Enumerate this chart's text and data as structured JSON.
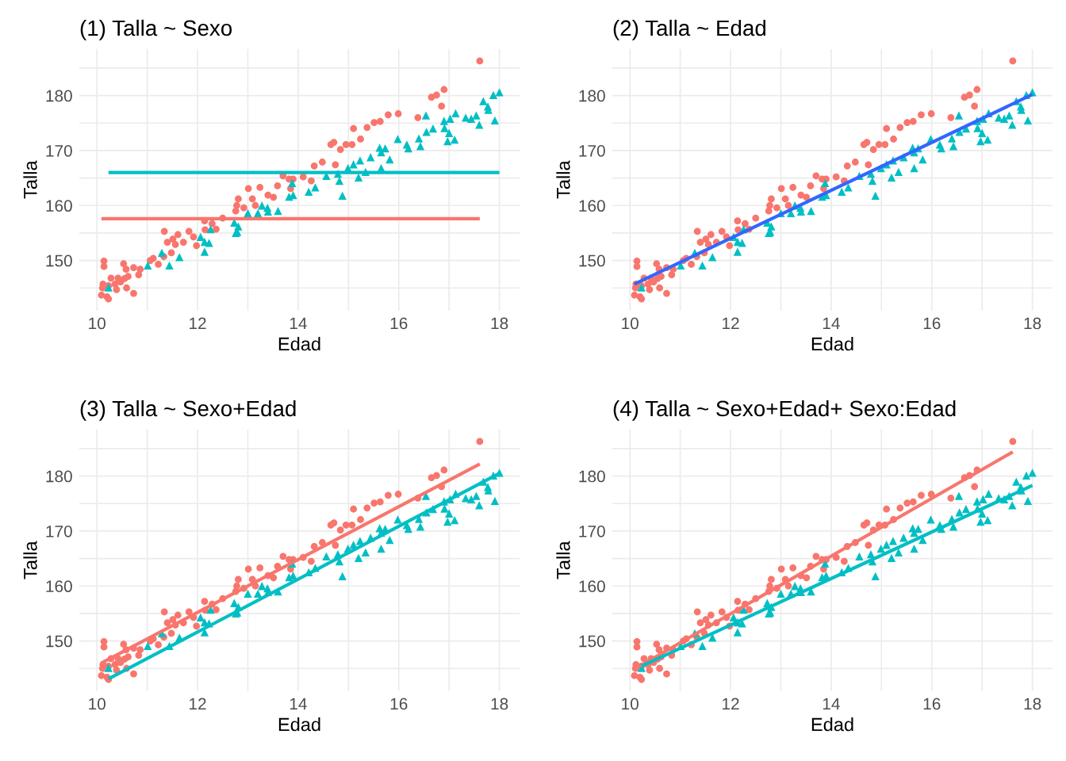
{
  "chart_data": [
    {
      "type": "scatter",
      "title": "(1) Talla ~ Sexo",
      "xlabel": "Edad",
      "ylabel": "Talla",
      "xlim": [
        9.65,
        18.4
      ],
      "ylim": [
        140.9,
        188.5
      ],
      "xticks": [
        10,
        {
          "value": 11,
          "label": null
        },
        12,
        {
          "value": 13,
          "label": null
        },
        14,
        {
          "value": 15,
          "label": null
        },
        16,
        {
          "value": 17,
          "label": null
        },
        18
      ],
      "yticks": [
        {
          "value": 145,
          "label": null
        },
        150,
        {
          "value": 155,
          "label": null
        },
        160,
        {
          "value": 165,
          "label": null
        },
        170,
        {
          "value": 175,
          "label": null
        },
        180,
        {
          "value": 185,
          "label": null
        }
      ],
      "grid": true,
      "series": [
        {
          "type": "scatter",
          "marker": "circle",
          "color": "#f8766d",
          "x": [
            10.14,
            10.14,
            10.53,
            10.58,
            10.73,
            10.86,
            10.83,
            10.28,
            10.42,
            10.55,
            10.62,
            10.12,
            10.11,
            10.23,
            10.36,
            10.39,
            10.47,
            10.59,
            10.73,
            10.09,
            10.2,
            10.23,
            11.06,
            11.12,
            11.22,
            11.33,
            11.48,
            11.34,
            11.4,
            11.51,
            11.61,
            11.56,
            11.72,
            11.83,
            11.92,
            11.98,
            12.14,
            12.15,
            12.29,
            12.37,
            12.5,
            12.76,
            12.81,
            12.78,
            12.92,
            13.01,
            13.09,
            13.15,
            13.24,
            13.4,
            13.51,
            13.59,
            13.7,
            13.82,
            13.85,
            13.9,
            14.1,
            14.26,
            14.32,
            14.48,
            14.74,
            14.65,
            14.71,
            14.84,
            14.95,
            15.07,
            15.1,
            15.24,
            15.37,
            15.51,
            15.63,
            15.79,
            15.99,
            16.38,
            16.65,
            16.75,
            16.9,
            16.85,
            17.61
          ],
          "values": [
            149.9,
            148.9,
            149.4,
            148.4,
            148.7,
            148.4,
            147.4,
            146.8,
            146.8,
            146.7,
            147.1,
            145.7,
            145.0,
            145.4,
            145.7,
            144.7,
            146.1,
            145.0,
            144.0,
            143.7,
            143.4,
            143.0,
            150.0,
            150.4,
            149.3,
            150.7,
            151.4,
            155.3,
            153.3,
            153.9,
            154.7,
            152.9,
            153.3,
            155.3,
            154.3,
            152.7,
            157.2,
            155.6,
            156.7,
            155.7,
            157.7,
            159.0,
            161.2,
            160.0,
            159.6,
            163.1,
            161.2,
            160.0,
            163.3,
            161.9,
            161.5,
            163.6,
            165.4,
            164.8,
            163.1,
            164.8,
            165.2,
            164.5,
            167.2,
            167.9,
            167.4,
            171.1,
            171.5,
            170.2,
            171.1,
            171.1,
            174.0,
            172.1,
            174.2,
            175.1,
            175.3,
            176.5,
            176.7,
            176.0,
            179.7,
            180.1,
            181.1,
            178.1,
            186.3
          ]
        },
        {
          "type": "scatter",
          "marker": "triangle",
          "color": "#00bfc4",
          "x": [
            10.23,
            11.01,
            11.29,
            11.44,
            11.64,
            12.06,
            12.14,
            12.23,
            12.14,
            12.26,
            12.73,
            12.76,
            12.81,
            12.79,
            13.0,
            13.2,
            13.28,
            13.39,
            13.4,
            13.6,
            13.82,
            13.9,
            13.88,
            14.21,
            14.34,
            14.56,
            14.79,
            14.82,
            14.88,
            14.99,
            15.1,
            15.23,
            15.2,
            15.44,
            15.34,
            15.62,
            15.65,
            15.73,
            15.82,
            15.65,
            15.98,
            16.16,
            16.19,
            16.4,
            16.43,
            16.55,
            16.54,
            16.68,
            16.9,
            16.91,
            17.02,
            17.13,
            17.0,
            16.97,
            17.11,
            17.33,
            17.44,
            17.54,
            17.6,
            17.91,
            17.68,
            17.77,
            17.78,
            17.88,
            18.0
          ],
          "values": [
            145.1,
            149.1,
            151.4,
            149.1,
            150.6,
            154.3,
            153.4,
            153.2,
            151.6,
            155.7,
            156.9,
            155.0,
            156.2,
            155.2,
            158.6,
            158.6,
            160.0,
            159.6,
            158.9,
            159.0,
            161.6,
            161.9,
            164.1,
            162.5,
            163.3,
            165.4,
            165.8,
            164.5,
            161.8,
            166.8,
            167.5,
            168.2,
            165.1,
            168.8,
            166.1,
            170.5,
            169.7,
            170.4,
            168.4,
            166.8,
            172.1,
            171.1,
            170.4,
            172.2,
            170.8,
            173.4,
            176.4,
            174.0,
            175.4,
            174.1,
            175.8,
            176.8,
            173.2,
            171.7,
            172.0,
            176.0,
            175.8,
            176.4,
            174.7,
            175.5,
            179.0,
            178.0,
            177.4,
            180.1,
            180.6
          ]
        },
        {
          "type": "line",
          "color": "#f8766d",
          "x": [
            10.09,
            17.61
          ],
          "values": [
            157.6,
            157.6
          ]
        },
        {
          "type": "line",
          "color": "#00bfc4",
          "x": [
            10.23,
            18.0
          ],
          "values": [
            166.0,
            166.0
          ]
        }
      ]
    },
    {
      "type": "scatter",
      "title": "(2) Talla ~ Edad",
      "xlabel": "Edad",
      "ylabel": "Talla",
      "xlim": [
        9.65,
        18.4
      ],
      "ylim": [
        140.9,
        188.5
      ],
      "xticks": [
        10,
        {
          "value": 11,
          "label": null
        },
        12,
        {
          "value": 13,
          "label": null
        },
        14,
        {
          "value": 15,
          "label": null
        },
        16,
        {
          "value": 17,
          "label": null
        },
        18
      ],
      "yticks": [
        {
          "value": 145,
          "label": null
        },
        150,
        {
          "value": 155,
          "label": null
        },
        160,
        {
          "value": 165,
          "label": null
        },
        170,
        {
          "value": 175,
          "label": null
        },
        180,
        {
          "value": 185,
          "label": null
        }
      ],
      "grid": true,
      "series": [
        {
          "type": "scatter",
          "marker": "circle",
          "color": "#f8766d",
          "x": [
            10.14,
            10.14,
            10.53,
            10.58,
            10.73,
            10.86,
            10.83,
            10.28,
            10.42,
            10.55,
            10.62,
            10.12,
            10.11,
            10.23,
            10.36,
            10.39,
            10.47,
            10.59,
            10.73,
            10.09,
            10.2,
            10.23,
            11.06,
            11.12,
            11.22,
            11.33,
            11.48,
            11.34,
            11.4,
            11.51,
            11.61,
            11.56,
            11.72,
            11.83,
            11.92,
            11.98,
            12.14,
            12.15,
            12.29,
            12.37,
            12.5,
            12.76,
            12.81,
            12.78,
            12.92,
            13.01,
            13.09,
            13.15,
            13.24,
            13.4,
            13.51,
            13.59,
            13.7,
            13.82,
            13.85,
            13.9,
            14.1,
            14.26,
            14.32,
            14.48,
            14.74,
            14.65,
            14.71,
            14.84,
            14.95,
            15.07,
            15.1,
            15.24,
            15.37,
            15.51,
            15.63,
            15.79,
            15.99,
            16.38,
            16.65,
            16.75,
            16.9,
            16.85,
            17.61
          ],
          "values": [
            149.9,
            148.9,
            149.4,
            148.4,
            148.7,
            148.4,
            147.4,
            146.8,
            146.8,
            146.7,
            147.1,
            145.7,
            145.0,
            145.4,
            145.7,
            144.7,
            146.1,
            145.0,
            144.0,
            143.7,
            143.4,
            143.0,
            150.0,
            150.4,
            149.3,
            150.7,
            151.4,
            155.3,
            153.3,
            153.9,
            154.7,
            152.9,
            153.3,
            155.3,
            154.3,
            152.7,
            157.2,
            155.6,
            156.7,
            155.7,
            157.7,
            159.0,
            161.2,
            160.0,
            159.6,
            163.1,
            161.2,
            160.0,
            163.3,
            161.9,
            161.5,
            163.6,
            165.4,
            164.8,
            163.1,
            164.8,
            165.2,
            164.5,
            167.2,
            167.9,
            167.4,
            171.1,
            171.5,
            170.2,
            171.1,
            171.1,
            174.0,
            172.1,
            174.2,
            175.1,
            175.3,
            176.5,
            176.7,
            176.0,
            179.7,
            180.1,
            181.1,
            178.1,
            186.3
          ]
        },
        {
          "type": "scatter",
          "marker": "triangle",
          "color": "#00bfc4",
          "x": [
            10.23,
            11.01,
            11.29,
            11.44,
            11.64,
            12.06,
            12.14,
            12.23,
            12.14,
            12.26,
            12.73,
            12.76,
            12.81,
            12.79,
            13.0,
            13.2,
            13.28,
            13.39,
            13.4,
            13.6,
            13.82,
            13.9,
            13.88,
            14.21,
            14.34,
            14.56,
            14.79,
            14.82,
            14.88,
            14.99,
            15.1,
            15.23,
            15.2,
            15.44,
            15.34,
            15.62,
            15.65,
            15.73,
            15.82,
            15.65,
            15.98,
            16.16,
            16.19,
            16.4,
            16.43,
            16.55,
            16.54,
            16.68,
            16.9,
            16.91,
            17.02,
            17.13,
            17.0,
            16.97,
            17.11,
            17.33,
            17.44,
            17.54,
            17.6,
            17.91,
            17.68,
            17.77,
            17.78,
            17.88,
            18.0
          ],
          "values": [
            145.1,
            149.1,
            151.4,
            149.1,
            150.6,
            154.3,
            153.4,
            153.2,
            151.6,
            155.7,
            156.9,
            155.0,
            156.2,
            155.2,
            158.6,
            158.6,
            160.0,
            159.6,
            158.9,
            159.0,
            161.6,
            161.9,
            164.1,
            162.5,
            163.3,
            165.4,
            165.8,
            164.5,
            161.8,
            166.8,
            167.5,
            168.2,
            165.1,
            168.8,
            166.1,
            170.5,
            169.7,
            170.4,
            168.4,
            166.8,
            172.1,
            171.1,
            170.4,
            172.2,
            170.8,
            173.4,
            176.4,
            174.0,
            175.4,
            174.1,
            175.8,
            176.8,
            173.2,
            171.7,
            172.0,
            176.0,
            175.8,
            176.4,
            174.7,
            175.5,
            179.0,
            178.0,
            177.4,
            180.1,
            180.6
          ]
        },
        {
          "type": "line",
          "color": "#3366ff",
          "x": [
            10.09,
            18.0
          ],
          "values": [
            145.7,
            180.2
          ]
        }
      ]
    },
    {
      "type": "scatter",
      "title": "(3) Talla ~ Sexo+Edad",
      "xlabel": "Edad",
      "ylabel": "Talla",
      "xlim": [
        9.65,
        18.4
      ],
      "ylim": [
        140.9,
        188.5
      ],
      "xticks": [
        10,
        {
          "value": 11,
          "label": null
        },
        12,
        {
          "value": 13,
          "label": null
        },
        14,
        {
          "value": 15,
          "label": null
        },
        16,
        {
          "value": 17,
          "label": null
        },
        18
      ],
      "yticks": [
        {
          "value": 145,
          "label": null
        },
        150,
        {
          "value": 155,
          "label": null
        },
        160,
        {
          "value": 165,
          "label": null
        },
        170,
        {
          "value": 175,
          "label": null
        },
        180,
        {
          "value": 185,
          "label": null
        }
      ],
      "grid": true,
      "series": [
        {
          "type": "scatter",
          "marker": "circle",
          "color": "#f8766d",
          "x": [
            10.14,
            10.14,
            10.53,
            10.58,
            10.73,
            10.86,
            10.83,
            10.28,
            10.42,
            10.55,
            10.62,
            10.12,
            10.11,
            10.23,
            10.36,
            10.39,
            10.47,
            10.59,
            10.73,
            10.09,
            10.2,
            10.23,
            11.06,
            11.12,
            11.22,
            11.33,
            11.48,
            11.34,
            11.4,
            11.51,
            11.61,
            11.56,
            11.72,
            11.83,
            11.92,
            11.98,
            12.14,
            12.15,
            12.29,
            12.37,
            12.5,
            12.76,
            12.81,
            12.78,
            12.92,
            13.01,
            13.09,
            13.15,
            13.24,
            13.4,
            13.51,
            13.59,
            13.7,
            13.82,
            13.85,
            13.9,
            14.1,
            14.26,
            14.32,
            14.48,
            14.74,
            14.65,
            14.71,
            14.84,
            14.95,
            15.07,
            15.1,
            15.24,
            15.37,
            15.51,
            15.63,
            15.79,
            15.99,
            16.38,
            16.65,
            16.75,
            16.9,
            16.85,
            17.61
          ],
          "values": [
            149.9,
            148.9,
            149.4,
            148.4,
            148.7,
            148.4,
            147.4,
            146.8,
            146.8,
            146.7,
            147.1,
            145.7,
            145.0,
            145.4,
            145.7,
            144.7,
            146.1,
            145.0,
            144.0,
            143.7,
            143.4,
            143.0,
            150.0,
            150.4,
            149.3,
            150.7,
            151.4,
            155.3,
            153.3,
            153.9,
            154.7,
            152.9,
            153.3,
            155.3,
            154.3,
            152.7,
            157.2,
            155.6,
            156.7,
            155.7,
            157.7,
            159.0,
            161.2,
            160.0,
            159.6,
            163.1,
            161.2,
            160.0,
            163.3,
            161.9,
            161.5,
            163.6,
            165.4,
            164.8,
            163.1,
            164.8,
            165.2,
            164.5,
            167.2,
            167.9,
            167.4,
            171.1,
            171.5,
            170.2,
            171.1,
            171.1,
            174.0,
            172.1,
            174.2,
            175.1,
            175.3,
            176.5,
            176.7,
            176.0,
            179.7,
            180.1,
            181.1,
            178.1,
            186.3
          ]
        },
        {
          "type": "scatter",
          "marker": "triangle",
          "color": "#00bfc4",
          "x": [
            10.23,
            11.01,
            11.29,
            11.44,
            11.64,
            12.06,
            12.14,
            12.23,
            12.14,
            12.26,
            12.73,
            12.76,
            12.81,
            12.79,
            13.0,
            13.2,
            13.28,
            13.39,
            13.4,
            13.6,
            13.82,
            13.9,
            13.88,
            14.21,
            14.34,
            14.56,
            14.79,
            14.82,
            14.88,
            14.99,
            15.1,
            15.23,
            15.2,
            15.44,
            15.34,
            15.62,
            15.65,
            15.73,
            15.82,
            15.65,
            15.98,
            16.16,
            16.19,
            16.4,
            16.43,
            16.55,
            16.54,
            16.68,
            16.9,
            16.91,
            17.02,
            17.13,
            17.0,
            16.97,
            17.11,
            17.33,
            17.44,
            17.54,
            17.6,
            17.91,
            17.68,
            17.77,
            17.78,
            17.88,
            18.0
          ],
          "values": [
            145.1,
            149.1,
            151.4,
            149.1,
            150.6,
            154.3,
            153.4,
            153.2,
            151.6,
            155.7,
            156.9,
            155.0,
            156.2,
            155.2,
            158.6,
            158.6,
            160.0,
            159.6,
            158.9,
            159.0,
            161.6,
            161.9,
            164.1,
            162.5,
            163.3,
            165.4,
            165.8,
            164.5,
            161.8,
            166.8,
            167.5,
            168.2,
            165.1,
            168.8,
            166.1,
            170.5,
            169.7,
            170.4,
            168.4,
            166.8,
            172.1,
            171.1,
            170.4,
            172.2,
            170.8,
            173.4,
            176.4,
            174.0,
            175.4,
            174.1,
            175.8,
            176.8,
            173.2,
            171.7,
            172.0,
            176.0,
            175.8,
            176.4,
            174.7,
            175.5,
            179.0,
            178.0,
            177.4,
            180.1,
            180.6
          ]
        },
        {
          "type": "line",
          "color": "#f8766d",
          "x": [
            10.09,
            17.61
          ],
          "values": [
            146.0,
            182.2
          ]
        },
        {
          "type": "line",
          "color": "#00bfc4",
          "x": [
            10.23,
            18.0
          ],
          "values": [
            143.1,
            180.5
          ]
        }
      ]
    },
    {
      "type": "scatter",
      "title": "(4) Talla ~ Sexo+Edad+ Sexo:Edad",
      "xlabel": "Edad",
      "ylabel": "Talla",
      "xlim": [
        9.65,
        18.4
      ],
      "ylim": [
        140.9,
        188.5
      ],
      "xticks": [
        10,
        {
          "value": 11,
          "label": null
        },
        12,
        {
          "value": 13,
          "label": null
        },
        14,
        {
          "value": 15,
          "label": null
        },
        16,
        {
          "value": 17,
          "label": null
        },
        18
      ],
      "yticks": [
        {
          "value": 145,
          "label": null
        },
        150,
        {
          "value": 155,
          "label": null
        },
        160,
        {
          "value": 165,
          "label": null
        },
        170,
        {
          "value": 175,
          "label": null
        },
        180,
        {
          "value": 185,
          "label": null
        }
      ],
      "grid": true,
      "series": [
        {
          "type": "scatter",
          "marker": "circle",
          "color": "#f8766d",
          "x": [
            10.14,
            10.14,
            10.53,
            10.58,
            10.73,
            10.86,
            10.83,
            10.28,
            10.42,
            10.55,
            10.62,
            10.12,
            10.11,
            10.23,
            10.36,
            10.39,
            10.47,
            10.59,
            10.73,
            10.09,
            10.2,
            10.23,
            11.06,
            11.12,
            11.22,
            11.33,
            11.48,
            11.34,
            11.4,
            11.51,
            11.61,
            11.56,
            11.72,
            11.83,
            11.92,
            11.98,
            12.14,
            12.15,
            12.29,
            12.37,
            12.5,
            12.76,
            12.81,
            12.78,
            12.92,
            13.01,
            13.09,
            13.15,
            13.24,
            13.4,
            13.51,
            13.59,
            13.7,
            13.82,
            13.85,
            13.9,
            14.1,
            14.26,
            14.32,
            14.48,
            14.74,
            14.65,
            14.71,
            14.84,
            14.95,
            15.07,
            15.1,
            15.24,
            15.37,
            15.51,
            15.63,
            15.79,
            15.99,
            16.38,
            16.65,
            16.75,
            16.9,
            16.85,
            17.61
          ],
          "values": [
            149.9,
            148.9,
            149.4,
            148.4,
            148.7,
            148.4,
            147.4,
            146.8,
            146.8,
            146.7,
            147.1,
            145.7,
            145.0,
            145.4,
            145.7,
            144.7,
            146.1,
            145.0,
            144.0,
            143.7,
            143.4,
            143.0,
            150.0,
            150.4,
            149.3,
            150.7,
            151.4,
            155.3,
            153.3,
            153.9,
            154.7,
            152.9,
            153.3,
            155.3,
            154.3,
            152.7,
            157.2,
            155.6,
            156.7,
            155.7,
            157.7,
            159.0,
            161.2,
            160.0,
            159.6,
            163.1,
            161.2,
            160.0,
            163.3,
            161.9,
            161.5,
            163.6,
            165.4,
            164.8,
            163.1,
            164.8,
            165.2,
            164.5,
            167.2,
            167.9,
            167.4,
            171.1,
            171.5,
            170.2,
            171.1,
            171.1,
            174.0,
            172.1,
            174.2,
            175.1,
            175.3,
            176.5,
            176.7,
            176.0,
            179.7,
            180.1,
            181.1,
            178.1,
            186.3
          ]
        },
        {
          "type": "scatter",
          "marker": "triangle",
          "color": "#00bfc4",
          "x": [
            10.23,
            11.01,
            11.29,
            11.44,
            11.64,
            12.06,
            12.14,
            12.23,
            12.14,
            12.26,
            12.73,
            12.76,
            12.81,
            12.79,
            13.0,
            13.2,
            13.28,
            13.39,
            13.4,
            13.6,
            13.82,
            13.9,
            13.88,
            14.21,
            14.34,
            14.56,
            14.79,
            14.82,
            14.88,
            14.99,
            15.1,
            15.23,
            15.2,
            15.44,
            15.34,
            15.62,
            15.65,
            15.73,
            15.82,
            15.65,
            15.98,
            16.16,
            16.19,
            16.4,
            16.43,
            16.55,
            16.54,
            16.68,
            16.9,
            16.91,
            17.02,
            17.13,
            17.0,
            16.97,
            17.11,
            17.33,
            17.44,
            17.54,
            17.6,
            17.91,
            17.68,
            17.77,
            17.78,
            17.88,
            18.0
          ],
          "values": [
            145.1,
            149.1,
            151.4,
            149.1,
            150.6,
            154.3,
            153.4,
            153.2,
            151.6,
            155.7,
            156.9,
            155.0,
            156.2,
            155.2,
            158.6,
            158.6,
            160.0,
            159.6,
            158.9,
            159.0,
            161.6,
            161.9,
            164.1,
            162.5,
            163.3,
            165.4,
            165.8,
            164.5,
            161.8,
            166.8,
            167.5,
            168.2,
            165.1,
            168.8,
            166.1,
            170.5,
            169.7,
            170.4,
            168.4,
            166.8,
            172.1,
            171.1,
            170.4,
            172.2,
            170.8,
            173.4,
            176.4,
            174.0,
            175.4,
            174.1,
            175.8,
            176.8,
            173.2,
            171.7,
            172.0,
            176.0,
            175.8,
            176.4,
            174.7,
            175.5,
            179.0,
            178.0,
            177.4,
            180.1,
            180.6
          ]
        },
        {
          "type": "line",
          "color": "#f8766d",
          "x": [
            10.09,
            17.61
          ],
          "values": [
            144.9,
            184.4
          ]
        },
        {
          "type": "line",
          "color": "#00bfc4",
          "x": [
            10.23,
            18.0
          ],
          "values": [
            145.4,
            178.3
          ]
        }
      ]
    }
  ]
}
